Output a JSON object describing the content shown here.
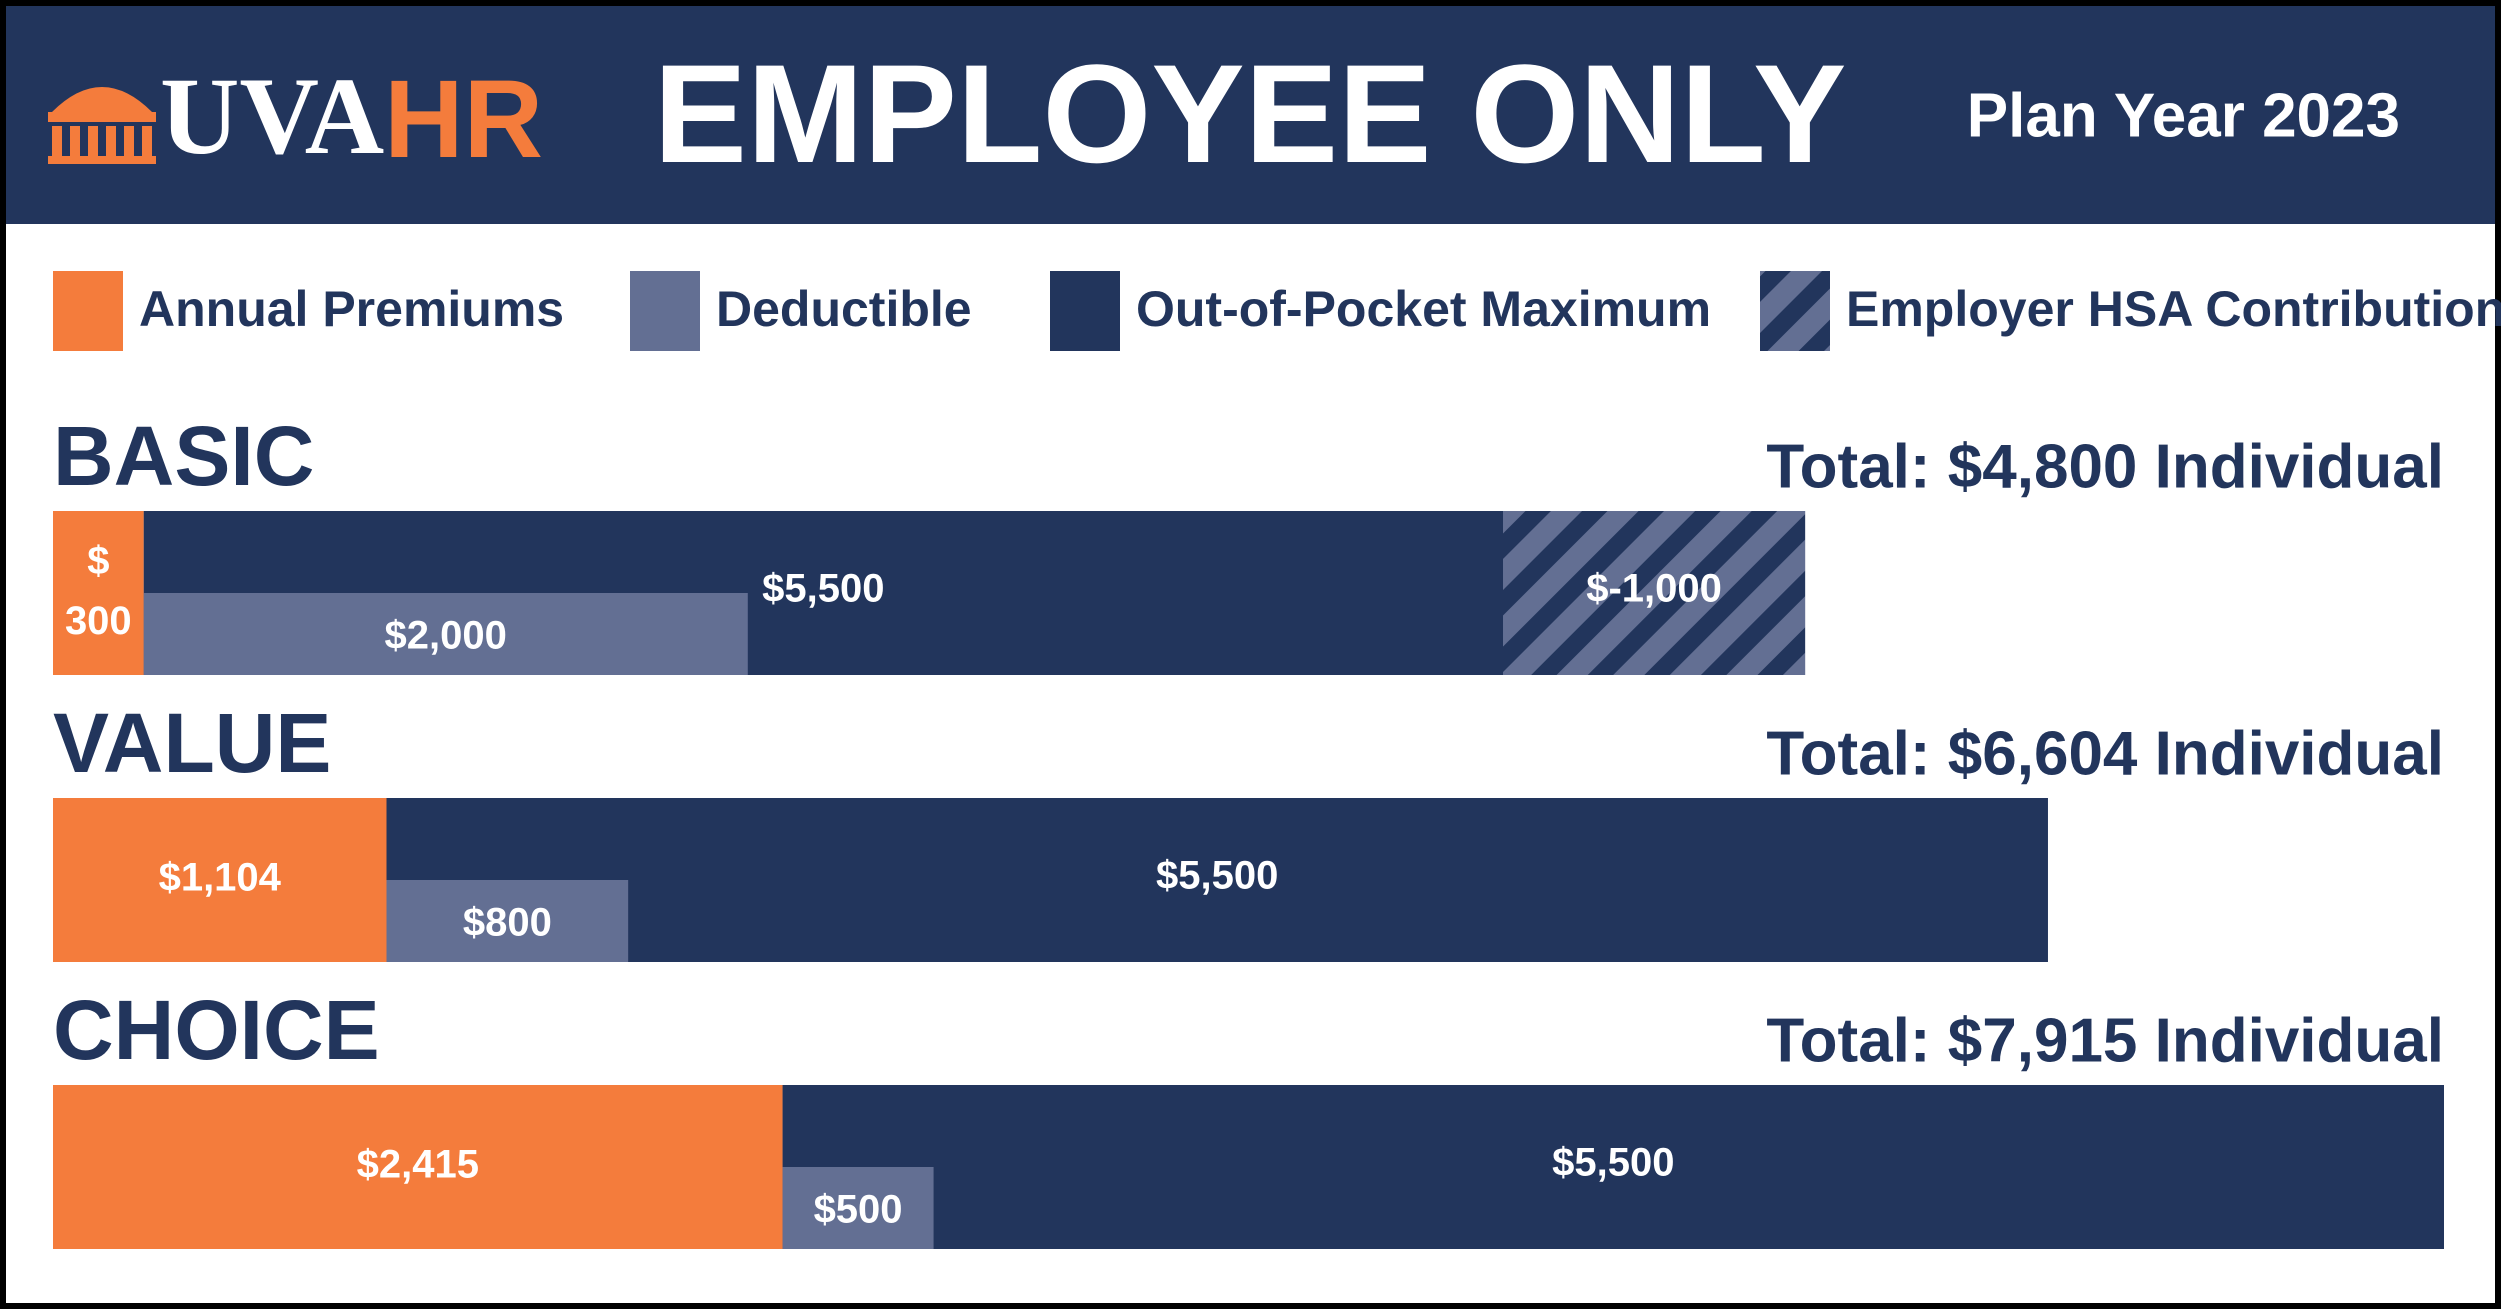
{
  "chart_data": {
    "type": "bar",
    "orientation": "horizontal",
    "brand": [
      "UVA",
      "HR"
    ],
    "title": "EMPLOYEE ONLY",
    "subtitle": "Plan Year 2023",
    "categories": [
      "BASIC",
      "VALUE",
      "CHOICE"
    ],
    "totals": [
      "Total: $4,800 Individual",
      "Total: $6,604 Individual",
      "Total: $7,915 Individual"
    ],
    "series": [
      {
        "name": "Annual Premiums",
        "color": "#f47c3c",
        "values": [
          300,
          1104,
          2415
        ],
        "value_labels": [
          "$ 300",
          "$1,104",
          "$2,415"
        ]
      },
      {
        "name": "Deductible",
        "color": "#636f93",
        "values": [
          2000,
          800,
          500
        ],
        "value_labels": [
          "$2,000",
          "$800",
          "$500"
        ]
      },
      {
        "name": "Out-of-Pocket Maximum",
        "color": "#22355c",
        "values": [
          5500,
          5500,
          5500
        ],
        "value_labels": [
          "$5,500",
          "$5,500",
          "$5,500"
        ]
      },
      {
        "name": "Employer HSA Contribution",
        "color": "#636f93",
        "hatched": true,
        "values": [
          -1000,
          null,
          null
        ],
        "value_labels": [
          "$-1,000",
          null,
          null
        ]
      }
    ]
  }
}
